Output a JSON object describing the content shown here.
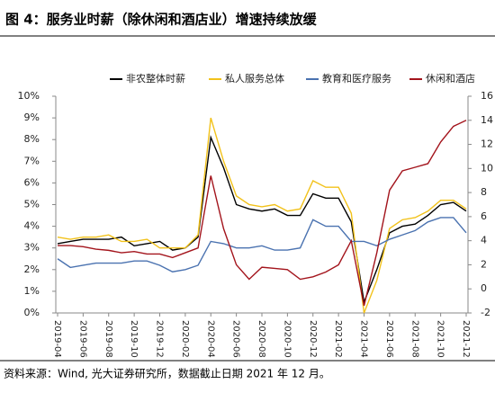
{
  "chart_data": {
    "type": "line",
    "title": "图 4：服务业时薪（除休闲和酒店业）增速持续放缓",
    "source": "资料来源：Wind, 光大证券研究所，数据截止日期 2021 年 12 月。",
    "categories": [
      "2019-04",
      null,
      "2019-06",
      null,
      "2019-08",
      null,
      "2019-10",
      null,
      "2019-12",
      null,
      "2020-02",
      null,
      "2020-04",
      null,
      "2020-06",
      null,
      "2020-08",
      null,
      "2020-10",
      null,
      "2020-12",
      null,
      "2021-02",
      null,
      "2021-04",
      null,
      "2021-06",
      null,
      "2021-08",
      null,
      "2021-10",
      null,
      "2021-12"
    ],
    "ylim": [
      0,
      10
    ],
    "yticks": [
      {
        "value": 0,
        "label": "0%"
      },
      {
        "value": 1,
        "label": "1%"
      },
      {
        "value": 2,
        "label": "2%"
      },
      {
        "value": 3,
        "label": "3%"
      },
      {
        "value": 4,
        "label": "4%"
      },
      {
        "value": 5,
        "label": "5%"
      },
      {
        "value": 6,
        "label": "6%"
      },
      {
        "value": 7,
        "label": "7%"
      },
      {
        "value": 8,
        "label": "8%"
      },
      {
        "value": 9,
        "label": "9%"
      },
      {
        "value": 10,
        "label": "10%"
      }
    ],
    "y2lim": [
      -2,
      16
    ],
    "y2ticks": [
      -2,
      0,
      2,
      4,
      6,
      8,
      10,
      12,
      14,
      16
    ],
    "legend": "top",
    "series": [
      {
        "name": "非农整体时薪",
        "color": "#000000",
        "values": [
          3.2,
          3.3,
          3.4,
          3.4,
          3.4,
          3.5,
          3.1,
          3.2,
          3.3,
          2.9,
          3.0,
          3.5,
          8.1,
          6.7,
          5.0,
          4.8,
          4.7,
          4.8,
          4.5,
          4.5,
          5.5,
          5.3,
          5.3,
          4.2,
          0.5,
          2.0,
          3.7,
          4.0,
          4.1,
          4.5,
          5.0,
          5.1,
          4.7
        ]
      },
      {
        "name": "私人服务总体",
        "color": "#f2c21b",
        "values": [
          3.5,
          3.4,
          3.5,
          3.5,
          3.6,
          3.3,
          3.3,
          3.4,
          3.0,
          3.0,
          3.0,
          3.6,
          9.0,
          7.0,
          5.4,
          5.0,
          4.9,
          5.0,
          4.7,
          4.8,
          6.1,
          5.8,
          5.8,
          4.6,
          0.0,
          1.5,
          3.9,
          4.3,
          4.4,
          4.7,
          5.2,
          5.2,
          4.8
        ]
      },
      {
        "name": "教育和医疗服务",
        "color": "#4a72b0",
        "values": [
          2.5,
          2.1,
          2.2,
          2.3,
          2.3,
          2.3,
          2.4,
          2.4,
          2.2,
          1.9,
          2.0,
          2.2,
          3.3,
          3.2,
          3.0,
          3.0,
          3.1,
          2.9,
          2.9,
          3.0,
          4.3,
          4.0,
          4.0,
          3.3,
          3.3,
          3.1,
          3.4,
          3.6,
          3.8,
          4.2,
          4.4,
          4.4,
          3.7
        ]
      },
      {
        "name": "休闲和酒店",
        "color": "#a3141c",
        "axis": "y2",
        "values": [
          3.6,
          3.6,
          3.5,
          3.3,
          3.2,
          3.0,
          3.1,
          2.9,
          2.9,
          2.6,
          3.0,
          3.4,
          9.4,
          5.0,
          2.0,
          0.8,
          1.8,
          1.7,
          1.6,
          0.8,
          1.0,
          1.4,
          2.0,
          4.0,
          -1.4,
          3.0,
          8.2,
          9.8,
          10.1,
          10.4,
          12.2,
          13.5,
          14.0
        ]
      }
    ]
  }
}
